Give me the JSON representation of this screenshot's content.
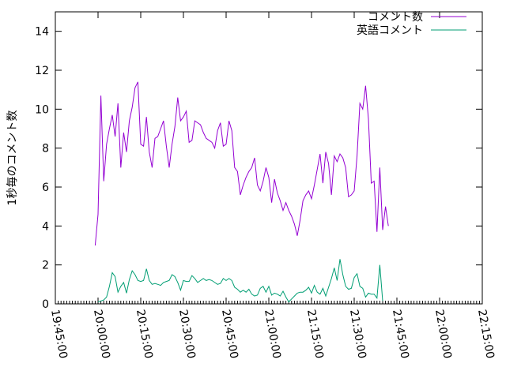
{
  "chart_data": {
    "type": "line",
    "title": "",
    "xlabel": "",
    "ylabel": "1秒毎のコメント数",
    "ylim": [
      0,
      15
    ],
    "xlim": [
      "19:45:00",
      "22:15:00"
    ],
    "y_ticks": [
      0,
      2,
      4,
      6,
      8,
      10,
      12,
      14
    ],
    "x_ticks": [
      "19:45:00",
      "20:00:00",
      "20:15:00",
      "20:30:00",
      "20:45:00",
      "21:00:00",
      "21:15:00",
      "21:30:00",
      "21:45:00",
      "22:00:00",
      "22:15:00"
    ],
    "x_minor_step_minutes": 1,
    "grid": false,
    "legend_position": "top-right",
    "series": [
      {
        "name": "コメント数",
        "color": "#9400d3",
        "points": [
          [
            "19:59:00",
            3.0
          ],
          [
            "20:00:00",
            4.6
          ],
          [
            "20:01:00",
            10.7
          ],
          [
            "20:02:00",
            6.3
          ],
          [
            "20:03:00",
            8.2
          ],
          [
            "20:04:00",
            9.0
          ],
          [
            "20:05:00",
            9.7
          ],
          [
            "20:06:00",
            8.6
          ],
          [
            "20:07:00",
            10.3
          ],
          [
            "20:08:00",
            7.0
          ],
          [
            "20:09:00",
            8.8
          ],
          [
            "20:10:00",
            7.8
          ],
          [
            "20:11:00",
            9.4
          ],
          [
            "20:12:00",
            10.1
          ],
          [
            "20:13:00",
            11.1
          ],
          [
            "20:14:00",
            11.4
          ],
          [
            "20:15:00",
            8.2
          ],
          [
            "20:16:00",
            8.1
          ],
          [
            "20:17:00",
            9.6
          ],
          [
            "20:18:00",
            7.8
          ],
          [
            "20:19:00",
            7.0
          ],
          [
            "20:20:00",
            8.5
          ],
          [
            "20:21:00",
            8.6
          ],
          [
            "20:22:00",
            9.0
          ],
          [
            "20:23:00",
            9.4
          ],
          [
            "20:24:00",
            8.1
          ],
          [
            "20:25:00",
            7.0
          ],
          [
            "20:26:00",
            8.2
          ],
          [
            "20:27:00",
            9.1
          ],
          [
            "20:28:00",
            10.6
          ],
          [
            "20:29:00",
            9.4
          ],
          [
            "20:30:00",
            9.6
          ],
          [
            "20:31:00",
            9.9
          ],
          [
            "20:32:00",
            8.3
          ],
          [
            "20:33:00",
            8.4
          ],
          [
            "20:34:00",
            9.4
          ],
          [
            "20:35:00",
            9.3
          ],
          [
            "20:36:00",
            9.2
          ],
          [
            "20:37:00",
            8.8
          ],
          [
            "20:38:00",
            8.5
          ],
          [
            "20:39:00",
            8.4
          ],
          [
            "20:40:00",
            8.3
          ],
          [
            "20:41:00",
            8.0
          ],
          [
            "20:42:00",
            8.9
          ],
          [
            "20:43:00",
            9.3
          ],
          [
            "20:44:00",
            8.1
          ],
          [
            "20:45:00",
            8.2
          ],
          [
            "20:46:00",
            9.4
          ],
          [
            "20:47:00",
            8.9
          ],
          [
            "20:48:00",
            7.0
          ],
          [
            "20:49:00",
            6.8
          ],
          [
            "20:50:00",
            5.6
          ],
          [
            "20:51:00",
            6.1
          ],
          [
            "20:52:00",
            6.5
          ],
          [
            "20:53:00",
            6.8
          ],
          [
            "20:54:00",
            7.0
          ],
          [
            "20:55:00",
            7.5
          ],
          [
            "20:56:00",
            6.1
          ],
          [
            "20:57:00",
            5.8
          ],
          [
            "20:58:00",
            6.3
          ],
          [
            "20:59:00",
            7.0
          ],
          [
            "21:00:00",
            6.5
          ],
          [
            "21:01:00",
            5.2
          ],
          [
            "21:02:00",
            6.4
          ],
          [
            "21:03:00",
            5.7
          ],
          [
            "21:04:00",
            5.3
          ],
          [
            "21:05:00",
            4.8
          ],
          [
            "21:06:00",
            5.2
          ],
          [
            "21:07:00",
            4.8
          ],
          [
            "21:08:00",
            4.5
          ],
          [
            "21:09:00",
            4.1
          ],
          [
            "21:10:00",
            3.5
          ],
          [
            "21:11:00",
            4.3
          ],
          [
            "21:12:00",
            5.3
          ],
          [
            "21:13:00",
            5.6
          ],
          [
            "21:14:00",
            5.8
          ],
          [
            "21:15:00",
            5.4
          ],
          [
            "21:16:00",
            6.1
          ],
          [
            "21:17:00",
            6.9
          ],
          [
            "21:18:00",
            7.7
          ],
          [
            "21:19:00",
            6.2
          ],
          [
            "21:20:00",
            7.8
          ],
          [
            "21:21:00",
            7.2
          ],
          [
            "21:22:00",
            5.6
          ],
          [
            "21:23:00",
            7.6
          ],
          [
            "21:24:00",
            7.3
          ],
          [
            "21:25:00",
            7.7
          ],
          [
            "21:26:00",
            7.5
          ],
          [
            "21:27:00",
            7.0
          ],
          [
            "21:28:00",
            5.5
          ],
          [
            "21:29:00",
            5.6
          ],
          [
            "21:30:00",
            5.8
          ],
          [
            "21:31:00",
            7.6
          ],
          [
            "21:32:00",
            10.3
          ],
          [
            "21:33:00",
            10.0
          ],
          [
            "21:34:00",
            11.2
          ],
          [
            "21:35:00",
            9.5
          ],
          [
            "21:36:00",
            6.2
          ],
          [
            "21:37:00",
            6.3
          ],
          [
            "21:38:00",
            3.7
          ],
          [
            "21:39:00",
            7.0
          ],
          [
            "21:40:00",
            3.8
          ],
          [
            "21:41:00",
            5.0
          ],
          [
            "21:42:00",
            4.0
          ]
        ]
      },
      {
        "name": "英語コメント",
        "color": "#009e73",
        "points": [
          [
            "20:00:00",
            0.1
          ],
          [
            "20:01:00",
            0.15
          ],
          [
            "20:02:00",
            0.2
          ],
          [
            "20:03:00",
            0.35
          ],
          [
            "20:04:00",
            0.9
          ],
          [
            "20:05:00",
            1.6
          ],
          [
            "20:06:00",
            1.4
          ],
          [
            "20:07:00",
            0.6
          ],
          [
            "20:08:00",
            0.9
          ],
          [
            "20:09:00",
            1.1
          ],
          [
            "20:10:00",
            0.55
          ],
          [
            "20:11:00",
            1.25
          ],
          [
            "20:12:00",
            1.7
          ],
          [
            "20:13:00",
            1.5
          ],
          [
            "20:14:00",
            1.2
          ],
          [
            "20:15:00",
            1.15
          ],
          [
            "20:16:00",
            1.2
          ],
          [
            "20:17:00",
            1.8
          ],
          [
            "20:18:00",
            1.2
          ],
          [
            "20:19:00",
            1.0
          ],
          [
            "20:20:00",
            1.05
          ],
          [
            "20:21:00",
            1.0
          ],
          [
            "20:22:00",
            0.95
          ],
          [
            "20:23:00",
            1.1
          ],
          [
            "20:24:00",
            1.15
          ],
          [
            "20:25:00",
            1.2
          ],
          [
            "20:26:00",
            1.5
          ],
          [
            "20:27:00",
            1.4
          ],
          [
            "20:28:00",
            1.1
          ],
          [
            "20:29:00",
            0.7
          ],
          [
            "20:30:00",
            1.2
          ],
          [
            "20:31:00",
            1.15
          ],
          [
            "20:32:00",
            1.15
          ],
          [
            "20:33:00",
            1.45
          ],
          [
            "20:34:00",
            1.3
          ],
          [
            "20:35:00",
            1.1
          ],
          [
            "20:36:00",
            1.2
          ],
          [
            "20:37:00",
            1.3
          ],
          [
            "20:38:00",
            1.2
          ],
          [
            "20:39:00",
            1.25
          ],
          [
            "20:40:00",
            1.2
          ],
          [
            "20:41:00",
            1.1
          ],
          [
            "20:42:00",
            1.0
          ],
          [
            "20:43:00",
            1.05
          ],
          [
            "20:44:00",
            1.3
          ],
          [
            "20:45:00",
            1.2
          ],
          [
            "20:46:00",
            1.3
          ],
          [
            "20:47:00",
            1.2
          ],
          [
            "20:48:00",
            0.85
          ],
          [
            "20:49:00",
            0.75
          ],
          [
            "20:50:00",
            0.6
          ],
          [
            "20:51:00",
            0.7
          ],
          [
            "20:52:00",
            0.6
          ],
          [
            "20:53:00",
            0.75
          ],
          [
            "20:54:00",
            0.5
          ],
          [
            "20:55:00",
            0.4
          ],
          [
            "20:56:00",
            0.45
          ],
          [
            "20:57:00",
            0.8
          ],
          [
            "20:58:00",
            0.9
          ],
          [
            "20:59:00",
            0.6
          ],
          [
            "21:00:00",
            0.9
          ],
          [
            "21:01:00",
            0.45
          ],
          [
            "21:02:00",
            0.55
          ],
          [
            "21:03:00",
            0.5
          ],
          [
            "21:04:00",
            0.4
          ],
          [
            "21:05:00",
            0.65
          ],
          [
            "21:06:00",
            0.35
          ],
          [
            "21:07:00",
            0.1
          ],
          [
            "21:08:00",
            0.25
          ],
          [
            "21:09:00",
            0.4
          ],
          [
            "21:10:00",
            0.55
          ],
          [
            "21:11:00",
            0.6
          ],
          [
            "21:12:00",
            0.6
          ],
          [
            "21:13:00",
            0.7
          ],
          [
            "21:14:00",
            0.85
          ],
          [
            "21:15:00",
            0.55
          ],
          [
            "21:16:00",
            0.95
          ],
          [
            "21:17:00",
            0.6
          ],
          [
            "21:18:00",
            0.5
          ],
          [
            "21:19:00",
            0.8
          ],
          [
            "21:20:00",
            0.4
          ],
          [
            "21:21:00",
            0.85
          ],
          [
            "21:22:00",
            1.3
          ],
          [
            "21:23:00",
            1.85
          ],
          [
            "21:24:00",
            1.2
          ],
          [
            "21:25:00",
            2.3
          ],
          [
            "21:26:00",
            1.5
          ],
          [
            "21:27:00",
            0.9
          ],
          [
            "21:28:00",
            0.75
          ],
          [
            "21:29:00",
            0.8
          ],
          [
            "21:30:00",
            1.35
          ],
          [
            "21:31:00",
            1.55
          ],
          [
            "21:32:00",
            0.9
          ],
          [
            "21:33:00",
            0.8
          ],
          [
            "21:34:00",
            0.35
          ],
          [
            "21:35:00",
            0.55
          ],
          [
            "21:36:00",
            0.5
          ],
          [
            "21:37:00",
            0.5
          ],
          [
            "21:38:00",
            0.3
          ],
          [
            "21:39:00",
            2.0
          ],
          [
            "21:40:00",
            0.15
          ]
        ]
      }
    ]
  }
}
